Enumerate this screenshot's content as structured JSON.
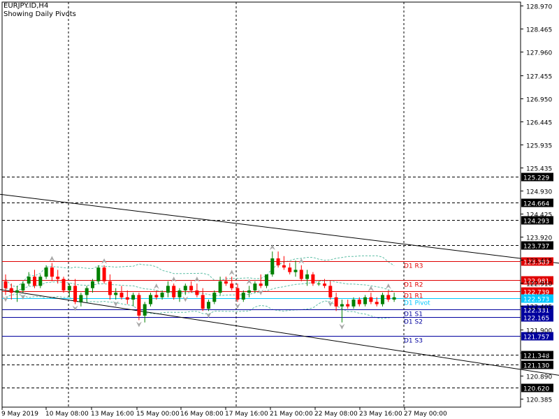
{
  "window": {
    "symbol_label": "EURJPY.ID,H4",
    "subtitle": "Showing Daily Pivots"
  },
  "colors": {
    "bull": "#008000",
    "bear": "#ff0000",
    "grid": "#000000",
    "pivot": "#00c8ff",
    "resistance": "#e00000",
    "support": "#00009e",
    "bollinger": "#5fbfa6",
    "fractal": "#a8a8a8",
    "trendline": "#000000"
  },
  "chart_data": {
    "type": "candlestick",
    "instrument": "EURJPY",
    "timeframe": "H4",
    "ylim": [
      120.2,
      129.05
    ],
    "y_ticks": [
      128.97,
      128.465,
      127.96,
      127.455,
      126.95,
      126.445,
      125.935,
      125.435,
      124.93,
      124.425,
      123.92,
      123.415,
      122.91,
      122.405,
      121.9,
      121.395,
      120.89,
      120.385
    ],
    "x_labels": [
      "9 May 2019",
      "10 May 08:00",
      "13 May 16:00",
      "15 May 00:00",
      "16 May 08:00",
      "17 May 16:00",
      "21 May 00:00",
      "22 May 08:00",
      "23 May 16:00",
      "27 May 00:00"
    ],
    "pivots": [
      {
        "label": "D1 R3",
        "value": 123.389,
        "kind": "resistance"
      },
      {
        "label": "D1 R2",
        "value": 122.981,
        "kind": "resistance"
      },
      {
        "label": "D1 R1",
        "value": 122.739,
        "kind": "resistance"
      },
      {
        "label": "D1 Pivot",
        "value": 122.573,
        "kind": "pivot"
      },
      {
        "label": "D1 S1",
        "value": 122.331,
        "kind": "support"
      },
      {
        "label": "D1 S2",
        "value": 122.165,
        "kind": "support"
      },
      {
        "label": "D1 S3",
        "value": 121.757,
        "kind": "support"
      }
    ],
    "level_lines": [
      125.229,
      124.664,
      124.293,
      123.737,
      121.348,
      121.13,
      120.62
    ],
    "trendlines": [
      {
        "from": [
          0,
          124.85
        ],
        "to": [
          124,
          122.9
        ]
      },
      {
        "from": [
          0,
          122.77
        ],
        "to": [
          124,
          120.34
        ]
      }
    ],
    "candles": [
      [
        122.95,
        123.1,
        122.65,
        122.8
      ],
      [
        122.8,
        122.9,
        122.55,
        122.7
      ],
      [
        122.7,
        122.85,
        122.5,
        122.75
      ],
      [
        122.75,
        122.95,
        122.7,
        122.9
      ],
      [
        122.9,
        123.15,
        122.85,
        123.05
      ],
      [
        123.05,
        123.2,
        122.8,
        122.85
      ],
      [
        122.85,
        123.1,
        122.8,
        123.05
      ],
      [
        123.05,
        123.3,
        123.0,
        123.25
      ],
      [
        123.25,
        123.35,
        122.95,
        123.05
      ],
      [
        123.05,
        123.2,
        122.9,
        123.0
      ],
      [
        123.0,
        123.05,
        122.7,
        122.75
      ],
      [
        122.75,
        122.9,
        122.6,
        122.85
      ],
      [
        122.85,
        123.0,
        122.45,
        122.5
      ],
      [
        122.5,
        122.7,
        122.4,
        122.65
      ],
      [
        122.65,
        122.85,
        122.5,
        122.8
      ],
      [
        122.8,
        123.0,
        122.7,
        122.95
      ],
      [
        122.95,
        123.3,
        122.9,
        123.25
      ],
      [
        123.25,
        123.3,
        122.9,
        122.95
      ],
      [
        122.95,
        123.1,
        122.55,
        122.65
      ],
      [
        122.65,
        122.8,
        122.55,
        122.7
      ],
      [
        122.7,
        122.85,
        122.55,
        122.6
      ],
      [
        122.6,
        122.75,
        122.45,
        122.55
      ],
      [
        122.55,
        122.7,
        122.4,
        122.65
      ],
      [
        122.65,
        122.7,
        122.1,
        122.2
      ],
      [
        122.2,
        122.5,
        122.05,
        122.45
      ],
      [
        122.45,
        122.7,
        122.4,
        122.65
      ],
      [
        122.65,
        122.75,
        122.55,
        122.6
      ],
      [
        122.6,
        122.75,
        122.55,
        122.7
      ],
      [
        122.7,
        122.95,
        122.6,
        122.85
      ],
      [
        122.85,
        122.9,
        122.55,
        122.6
      ],
      [
        122.6,
        122.8,
        122.5,
        122.75
      ],
      [
        122.75,
        122.9,
        122.65,
        122.85
      ],
      [
        122.85,
        122.95,
        122.7,
        122.75
      ],
      [
        122.75,
        122.9,
        122.6,
        122.65
      ],
      [
        122.65,
        122.8,
        122.3,
        122.35
      ],
      [
        122.35,
        122.55,
        122.3,
        122.5
      ],
      [
        122.5,
        122.75,
        122.45,
        122.7
      ],
      [
        122.7,
        123.05,
        122.65,
        122.95
      ],
      [
        122.95,
        123.05,
        122.85,
        122.9
      ],
      [
        122.9,
        123.05,
        122.75,
        122.8
      ],
      [
        122.8,
        122.9,
        122.5,
        122.55
      ],
      [
        122.55,
        122.75,
        122.5,
        122.7
      ],
      [
        122.7,
        122.85,
        122.6,
        122.75
      ],
      [
        122.75,
        122.95,
        122.7,
        122.9
      ],
      [
        122.9,
        123.1,
        122.8,
        122.85
      ],
      [
        122.85,
        123.1,
        122.8,
        123.1
      ],
      [
        123.1,
        123.6,
        123.05,
        123.45
      ],
      [
        123.45,
        123.6,
        123.25,
        123.3
      ],
      [
        123.3,
        123.5,
        123.2,
        123.25
      ],
      [
        123.25,
        123.35,
        123.1,
        123.15
      ],
      [
        123.15,
        123.4,
        123.05,
        123.2
      ],
      [
        123.2,
        123.3,
        122.95,
        123.0
      ],
      [
        123.0,
        123.2,
        122.85,
        123.1
      ],
      [
        123.1,
        123.15,
        122.85,
        122.9
      ],
      [
        122.9,
        122.95,
        122.85,
        122.9
      ],
      [
        122.9,
        123.0,
        122.8,
        122.85
      ],
      [
        122.85,
        122.95,
        122.55,
        122.6
      ],
      [
        122.6,
        122.7,
        122.3,
        122.4
      ],
      [
        122.4,
        122.55,
        122.05,
        122.45
      ],
      [
        122.45,
        122.55,
        122.35,
        122.4
      ],
      [
        122.4,
        122.6,
        122.35,
        122.55
      ],
      [
        122.55,
        122.6,
        122.4,
        122.45
      ],
      [
        122.45,
        122.65,
        122.4,
        122.6
      ],
      [
        122.6,
        122.7,
        122.45,
        122.5
      ],
      [
        122.5,
        122.6,
        122.4,
        122.45
      ],
      [
        122.45,
        122.7,
        122.4,
        122.65
      ],
      [
        122.65,
        122.75,
        122.5,
        122.55
      ],
      [
        122.55,
        122.7,
        122.5,
        122.6
      ]
    ],
    "fractals": [
      [
        0,
        "down"
      ],
      [
        3,
        "down"
      ],
      [
        8,
        "up"
      ],
      [
        12,
        "down"
      ],
      [
        17,
        "up"
      ],
      [
        19,
        "down"
      ],
      [
        23,
        "down"
      ],
      [
        26,
        "up"
      ],
      [
        29,
        "up"
      ],
      [
        31,
        "down"
      ],
      [
        33,
        "up"
      ],
      [
        35,
        "down"
      ],
      [
        39,
        "up"
      ],
      [
        40,
        "down"
      ],
      [
        42,
        "up"
      ],
      [
        44,
        "down"
      ],
      [
        46,
        "up"
      ],
      [
        51,
        "up"
      ],
      [
        56,
        "down"
      ],
      [
        58,
        "down"
      ],
      [
        63,
        "up"
      ],
      [
        66,
        "up"
      ]
    ]
  }
}
